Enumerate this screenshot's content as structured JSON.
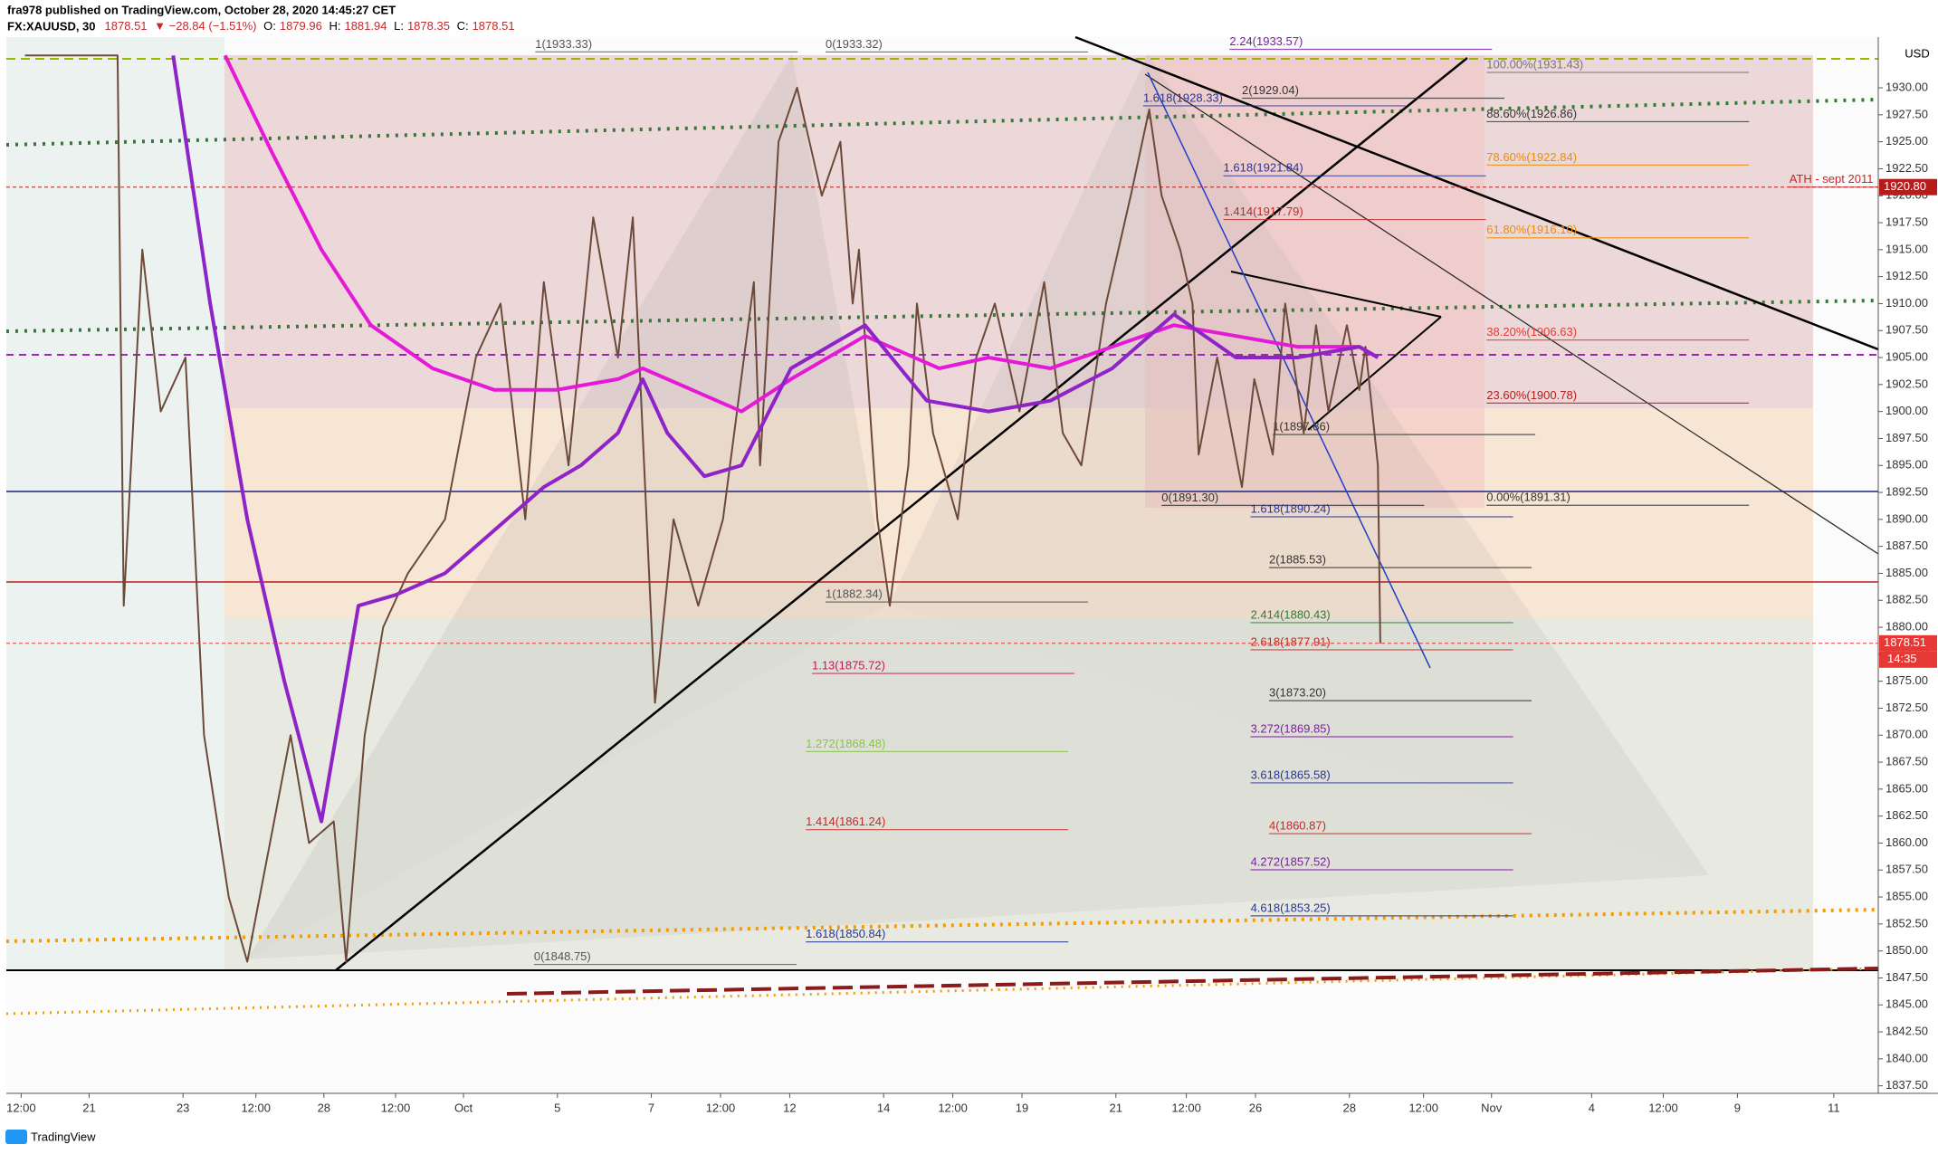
{
  "header": {
    "publisher": "fra978 published on TradingView.com, October 28, 2020 14:45:27 CET",
    "symbol": "FX:XAUUSD, 30",
    "last": "1878.51",
    "change": "▼ −28.84 (−1.51%)",
    "o_label": "O:",
    "o": "1879.96",
    "h_label": "H:",
    "h": "1881.94",
    "l_label": "L:",
    "l": "1878.35",
    "c_label": "C:",
    "c": "1878.51",
    "currency": "USD",
    "brand": "TradingView",
    "time_left": "14:35"
  },
  "chart_data": {
    "type": "line",
    "xlim": [
      5,
      1520
    ],
    "ylim": [
      1836.8,
      1934.7
    ],
    "xticks": [
      {
        "value": 17,
        "label": "12:00"
      },
      {
        "value": 72,
        "label": "21"
      },
      {
        "value": 148,
        "label": "23"
      },
      {
        "value": 207,
        "label": "12:00"
      },
      {
        "value": 262,
        "label": "28"
      },
      {
        "value": 320,
        "label": "12:00"
      },
      {
        "value": 375,
        "label": "Oct"
      },
      {
        "value": 451,
        "label": "5"
      },
      {
        "value": 527,
        "label": "7"
      },
      {
        "value": 583,
        "label": "12:00"
      },
      {
        "value": 639,
        "label": "12"
      },
      {
        "value": 715,
        "label": "14"
      },
      {
        "value": 771,
        "label": "12:00"
      },
      {
        "value": 827,
        "label": "19"
      },
      {
        "value": 903,
        "label": "21"
      },
      {
        "value": 960,
        "label": "12:00"
      },
      {
        "value": 1016,
        "label": "26"
      },
      {
        "value": 1092,
        "label": "28"
      },
      {
        "value": 1152,
        "label": "12:00"
      },
      {
        "value": 1207,
        "label": "Nov"
      },
      {
        "value": 1288,
        "label": "4"
      },
      {
        "value": 1346,
        "label": "12:00"
      },
      {
        "value": 1406,
        "label": "9"
      },
      {
        "value": 1484,
        "label": "11"
      }
    ],
    "yticks": [
      {
        "value": 1837.5,
        "label": "1837.50"
      },
      {
        "value": 1840,
        "label": "1840.00"
      },
      {
        "value": 1842.5,
        "label": "1842.50"
      },
      {
        "value": 1845,
        "label": "1845.00"
      },
      {
        "value": 1847.5,
        "label": "1847.50"
      },
      {
        "value": 1850,
        "label": "1850.00"
      },
      {
        "value": 1852.5,
        "label": "1852.50"
      },
      {
        "value": 1855,
        "label": "1855.00"
      },
      {
        "value": 1857.5,
        "label": "1857.50"
      },
      {
        "value": 1860,
        "label": "1860.00"
      },
      {
        "value": 1862.5,
        "label": "1862.50"
      },
      {
        "value": 1865,
        "label": "1865.00"
      },
      {
        "value": 1867.5,
        "label": "1867.50"
      },
      {
        "value": 1870,
        "label": "1870.00"
      },
      {
        "value": 1872.5,
        "label": "1872.50"
      },
      {
        "value": 1875,
        "label": "1875.00"
      },
      {
        "value": 1877.5,
        "label": "1877.50"
      },
      {
        "value": 1880,
        "label": "1880.00"
      },
      {
        "value": 1882.5,
        "label": "1882.50"
      },
      {
        "value": 1885,
        "label": "1885.00"
      },
      {
        "value": 1887.5,
        "label": "1887.50"
      },
      {
        "value": 1890,
        "label": "1890.00"
      },
      {
        "value": 1892.5,
        "label": "1892.50"
      },
      {
        "value": 1895,
        "label": "1895.00"
      },
      {
        "value": 1897.5,
        "label": "1897.50"
      },
      {
        "value": 1900,
        "label": "1900.00"
      },
      {
        "value": 1902.5,
        "label": "1902.50"
      },
      {
        "value": 1905,
        "label": "1905.00"
      },
      {
        "value": 1907.5,
        "label": "1907.50"
      },
      {
        "value": 1910,
        "label": "1910.00"
      },
      {
        "value": 1912.5,
        "label": "1912.50"
      },
      {
        "value": 1915,
        "label": "1915.00"
      },
      {
        "value": 1917.5,
        "label": "1917.50"
      },
      {
        "value": 1920,
        "label": "1920.00"
      },
      {
        "value": 1922.5,
        "label": "1922.50"
      },
      {
        "value": 1925,
        "label": "1925.00"
      },
      {
        "value": 1927.5,
        "label": "1927.50"
      },
      {
        "value": 1930,
        "label": "1930.00"
      }
    ],
    "series": [
      {
        "color": "#6b4a3a",
        "x": [
          20,
          95,
          100,
          115,
          130,
          150,
          165,
          185,
          200,
          235,
          250,
          270,
          280,
          295,
          310,
          330,
          360,
          385,
          405,
          425,
          440,
          460,
          480,
          500,
          512,
          520,
          530,
          545,
          565,
          585,
          610,
          615,
          630,
          645,
          665,
          680,
          690,
          695,
          710,
          720,
          735,
          742,
          755,
          775,
          790,
          805,
          825,
          845,
          860,
          875,
          895,
          915,
          930,
          940,
          955,
          965,
          970,
          985,
          1005,
          1015,
          1030,
          1040,
          1055,
          1065,
          1075,
          1090,
          1100,
          1105,
          1115,
          1117
        ],
        "values": [
          1933,
          1933,
          1882,
          1915,
          1900,
          1905,
          1870,
          1855,
          1849,
          1870,
          1860,
          1862,
          1849,
          1870,
          1880,
          1885,
          1890,
          1905,
          1910,
          1890,
          1912,
          1895,
          1918,
          1905,
          1918,
          1898,
          1873,
          1890,
          1882,
          1890,
          1912,
          1895,
          1925,
          1930,
          1920,
          1925,
          1910,
          1915,
          1890,
          1882,
          1895,
          1910,
          1898,
          1890,
          1905,
          1910,
          1900,
          1912,
          1898,
          1895,
          1910,
          1920,
          1928,
          1920,
          1915,
          1910,
          1896,
          1905,
          1893,
          1903,
          1896,
          1910,
          1898,
          1908,
          1900,
          1908,
          1902,
          1906,
          1895,
          1878.51
        ]
      },
      {
        "color": "#e41ad6",
        "x": [
          182,
          220,
          260,
          300,
          350,
          400,
          450,
          500,
          520,
          560,
          600,
          640,
          700,
          760,
          800,
          850,
          900,
          950,
          1000,
          1050,
          1100,
          1115
        ],
        "values": [
          1933,
          1924,
          1915,
          1908,
          1904,
          1902,
          1902,
          1903,
          1904,
          1902,
          1900,
          1903,
          1907,
          1904,
          1905,
          1904,
          1906,
          1908,
          1907,
          1906,
          1906,
          1905
        ]
      },
      {
        "color": "#8e24c8",
        "x": [
          140,
          170,
          200,
          230,
          260,
          290,
          320,
          360,
          400,
          440,
          470,
          500,
          520,
          540,
          570,
          600,
          640,
          700,
          750,
          800,
          850,
          900,
          950,
          1000,
          1050,
          1100,
          1115
        ],
        "values": [
          1933,
          1910,
          1890,
          1875,
          1862,
          1882,
          1883,
          1885,
          1889,
          1893,
          1895,
          1898,
          1903,
          1898,
          1894,
          1895,
          1904,
          1908,
          1901,
          1900,
          1901,
          1904,
          1909,
          1905,
          1905,
          1906,
          1905
        ]
      }
    ],
    "price_tags": [
      {
        "value": 1920.8,
        "label": "1920.80",
        "color": "#b71c1c"
      },
      {
        "value": 1878.51,
        "label": "1878.51",
        "color": "#e53935"
      }
    ],
    "annotations": [
      {
        "text": "1(1933.33)",
        "y": 1933.33,
        "color": "#555555"
      },
      {
        "text": "0(1933.32)",
        "y": 1933.32,
        "color": "#555555"
      },
      {
        "text": "2.24(1933.57)",
        "y": 1933.57,
        "color": "#7b1fa2"
      },
      {
        "text": "100.00%(1931.43)",
        "y": 1931.43,
        "color": "#777777"
      },
      {
        "text": "2(1929.04)",
        "y": 1929.04,
        "color": "#333333"
      },
      {
        "text": "1.618(1928.33)",
        "y": 1928.33,
        "color": "#283593"
      },
      {
        "text": "88.60%(1926.86)",
        "y": 1926.86,
        "color": "#333333"
      },
      {
        "text": "78.60%(1922.84)",
        "y": 1922.84,
        "color": "#ef8c00"
      },
      {
        "text": "1.618(1921.84)",
        "y": 1921.84,
        "color": "#283593"
      },
      {
        "text": "1.414(1917.79)",
        "y": 1917.79,
        "color": "#c62828"
      },
      {
        "text": "61.80%(1916.10)",
        "y": 1916.1,
        "color": "#ef8c00"
      },
      {
        "text": "38.20%(1906.63)",
        "y": 1906.63,
        "color": "#e53935"
      },
      {
        "text": "23.60%(1900.78)",
        "y": 1900.78,
        "color": "#b71c1c"
      },
      {
        "text": "1(1897.86)",
        "y": 1897.86,
        "color": "#333333"
      },
      {
        "text": "0(1891.30)",
        "y": 1891.3,
        "color": "#333333"
      },
      {
        "text": "0.00%(1891.31)",
        "y": 1891.31,
        "color": "#333333"
      },
      {
        "text": "1.618(1890.24)",
        "y": 1890.24,
        "color": "#283593"
      },
      {
        "text": "2(1885.53)",
        "y": 1885.53,
        "color": "#333333"
      },
      {
        "text": "1(1882.34)",
        "y": 1882.34,
        "color": "#555555"
      },
      {
        "text": "2.414(1880.43)",
        "y": 1880.43,
        "color": "#2e7d32"
      },
      {
        "text": "2.618(1877.91)",
        "y": 1877.91,
        "color": "#c62828"
      },
      {
        "text": "1.13(1875.72)",
        "y": 1875.72,
        "color": "#c2185b"
      },
      {
        "text": "3(1873.20)",
        "y": 1873.2,
        "color": "#333333"
      },
      {
        "text": "3.272(1869.85)",
        "y": 1869.85,
        "color": "#7b1fa2"
      },
      {
        "text": "1.272(1868.48)",
        "y": 1868.48,
        "color": "#8bc34a"
      },
      {
        "text": "3.618(1865.58)",
        "y": 1865.58,
        "color": "#283593"
      },
      {
        "text": "1.414(1861.24)",
        "y": 1861.24,
        "color": "#c62828"
      },
      {
        "text": "4(1860.87)",
        "y": 1860.87,
        "color": "#c62828"
      },
      {
        "text": "4.272(1857.52)",
        "y": 1857.52,
        "color": "#7b1fa2"
      },
      {
        "text": "4.618(1853.25)",
        "y": 1853.25,
        "color": "#283593"
      },
      {
        "text": "1.618(1850.84)",
        "y": 1850.84,
        "color": "#283593"
      },
      {
        "text": "0(1848.75)",
        "y": 1848.75,
        "color": "#555555"
      },
      {
        "text": "ATH - sept 2011",
        "y": 1920.8,
        "color": "#c62828"
      }
    ]
  }
}
